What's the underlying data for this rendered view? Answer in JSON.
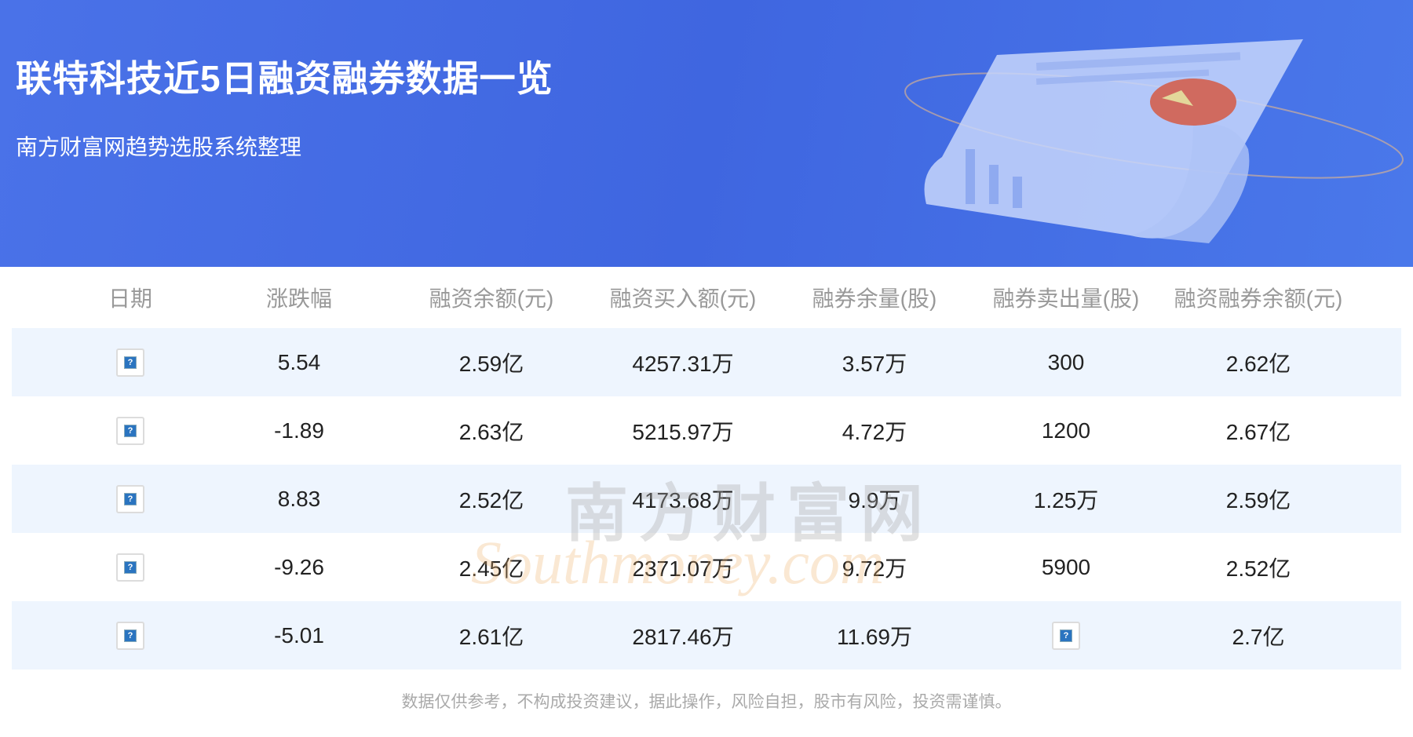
{
  "header": {
    "title": "联特科技近5日融资融券数据一览",
    "subtitle": "南方财富网趋势选股系统整理"
  },
  "table": {
    "columns": [
      "日期",
      "涨跌幅",
      "融资余额(元)",
      "融资买入额(元)",
      "融券余量(股)",
      "融券卖出量(股)",
      "融资融券余额(元)"
    ],
    "rows": [
      {
        "date": null,
        "change": "5.54",
        "fin_balance": "2.59亿",
        "fin_buy": "4257.31万",
        "sec_balance": "3.57万",
        "sec_sell": "300",
        "total": "2.62亿"
      },
      {
        "date": null,
        "change": "-1.89",
        "fin_balance": "2.63亿",
        "fin_buy": "5215.97万",
        "sec_balance": "4.72万",
        "sec_sell": "1200",
        "total": "2.67亿"
      },
      {
        "date": null,
        "change": "8.83",
        "fin_balance": "2.52亿",
        "fin_buy": "4173.68万",
        "sec_balance": "9.9万",
        "sec_sell": "1.25万",
        "total": "2.59亿"
      },
      {
        "date": null,
        "change": "-9.26",
        "fin_balance": "2.45亿",
        "fin_buy": "2371.07万",
        "sec_balance": "9.72万",
        "sec_sell": "5900",
        "total": "2.52亿"
      },
      {
        "date": null,
        "change": "-5.01",
        "fin_balance": "2.61亿",
        "fin_buy": "2817.46万",
        "sec_balance": "11.69万",
        "sec_sell": null,
        "total": "2.7亿"
      }
    ]
  },
  "watermark": {
    "cn": "南方财富网",
    "en": "Southmoney.com"
  },
  "footer": {
    "disclaimer": "数据仅供参考，不构成投资建议，据此操作，风险自担，股市有风险，投资需谨慎。"
  },
  "icons": {
    "broken_image": "broken-image-icon"
  }
}
